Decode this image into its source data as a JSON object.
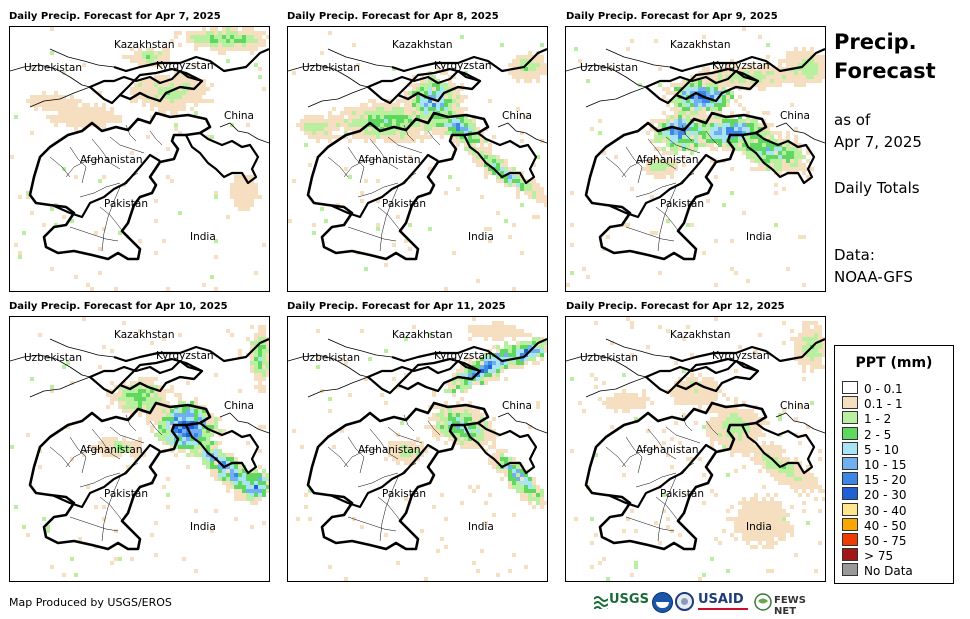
{
  "panels": [
    {
      "title": "Daily Precip. Forecast for Apr 7, 2025",
      "pattern": "light"
    },
    {
      "title": "Daily Precip. Forecast for Apr 8, 2025",
      "pattern": "moderate"
    },
    {
      "title": "Daily Precip. Forecast for Apr 9, 2025",
      "pattern": "heavy"
    },
    {
      "title": "Daily Precip. Forecast for Apr 10, 2025",
      "pattern": "east-heavy"
    },
    {
      "title": "Daily Precip. Forecast for Apr 11, 2025",
      "pattern": "north-band"
    },
    {
      "title": "Daily Precip. Forecast for Apr 12, 2025",
      "pattern": "sparse"
    }
  ],
  "country_labels": {
    "kazakhstan": "Kazakhstan",
    "uzbekistan": "Uzbekistan",
    "kyrgyzstan": "Kyrgyzstan",
    "china": "China",
    "afghanistan": "Afghanistan",
    "pakistan": "Pakistan",
    "india": "India"
  },
  "sidebar": {
    "title_line1": "Precip.",
    "title_line2": "Forecast",
    "asof_line1": "as of",
    "asof_line2": "Apr 7, 2025",
    "totals": "Daily Totals",
    "data_label": "Data:",
    "data_source": "NOAA-GFS"
  },
  "legend": {
    "title": "PPT (mm)",
    "items": [
      {
        "label": "0 - 0.1",
        "color": "#ffffff"
      },
      {
        "label": "0.1 - 1",
        "color": "#f5dfc0"
      },
      {
        "label": "1 - 2",
        "color": "#b8f0a0"
      },
      {
        "label": "2 - 5",
        "color": "#5fd860"
      },
      {
        "label": "5 - 10",
        "color": "#a8e4f4"
      },
      {
        "label": "10 - 15",
        "color": "#70b0f0"
      },
      {
        "label": "15 - 20",
        "color": "#3c86e6"
      },
      {
        "label": "20 - 30",
        "color": "#1f5fd8"
      },
      {
        "label": "30 - 40",
        "color": "#fce58c"
      },
      {
        "label": "40 - 50",
        "color": "#f8a800"
      },
      {
        "label": "50 - 75",
        "color": "#f03c00"
      },
      {
        "label": "> 75",
        "color": "#a01818"
      },
      {
        "label": "No Data",
        "color": "#999999"
      }
    ]
  },
  "footer": "Map Produced by USGS/EROS",
  "logos": {
    "usgs": "USGS",
    "usaid": "USAID",
    "fewsnet": "FEWS NET"
  }
}
